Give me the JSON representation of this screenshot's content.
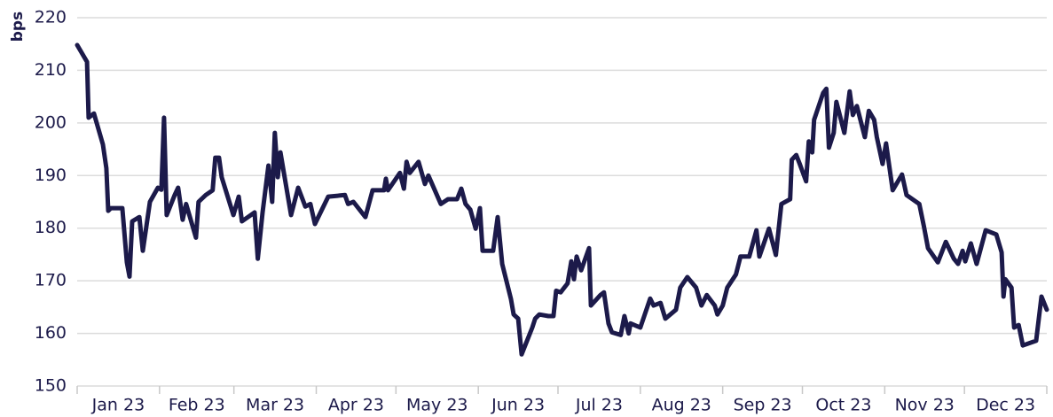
{
  "chart_data": {
    "type": "line",
    "y_label": "bps",
    "categories": [
      "Jan 23",
      "Feb 23",
      "Mar 23",
      "Apr 23",
      "May 23",
      "Jun 23",
      "Jul 23",
      "Aug 23",
      "Sep 23",
      "Oct 23",
      "Nov 23",
      "Dec 23"
    ],
    "xlim": [
      0,
      365
    ],
    "xticks": [
      0,
      31,
      59,
      90,
      120,
      151,
      181,
      212,
      243,
      273,
      304,
      334,
      365
    ],
    "ylim": [
      150,
      220
    ],
    "yticks": [
      150,
      160,
      170,
      180,
      190,
      200,
      210,
      220
    ],
    "grid": true,
    "series": [
      {
        "name": "bps",
        "color": "#1c1a4a",
        "x": [
          0,
          3.7,
          4.3,
          6.3,
          9.7,
          11,
          11.7,
          12.7,
          17,
          18.7,
          19.7,
          20.7,
          23.4,
          24.7,
          27.4,
          30.4,
          31.7,
          32.7,
          33.7,
          36.7,
          38,
          39.7,
          41,
          44.7,
          45.7,
          48.4,
          51,
          52,
          53.4,
          54.4,
          58.8,
          60.8,
          62,
          66.8,
          68,
          69.8,
          72,
          73.4,
          74.4,
          75.5,
          76.5,
          80.5,
          83.2,
          85.9,
          87.8,
          89.5,
          94.5,
          100.8,
          102,
          104,
          108.5,
          111.2,
          115.5,
          116.2,
          117,
          121.5,
          123,
          124,
          125.2,
          128.5,
          130.9,
          132.2,
          136.9,
          139.6,
          143,
          144.6,
          146.2,
          148,
          150,
          151.6,
          152.6,
          156.6,
          158.3,
          160,
          163.3,
          164.3,
          166,
          167.3,
          171.3,
          172.4,
          174,
          177.4,
          179.3,
          180.3,
          182,
          184.6,
          186,
          187,
          188,
          189.7,
          192.7,
          193.4,
          197,
          198.3,
          200,
          201.3,
          204.6,
          206,
          207.6,
          208.3,
          212,
          215.7,
          217,
          219.6,
          221.4,
          225.4,
          227,
          229.7,
          233,
          235,
          237,
          240,
          241,
          243,
          244.7,
          248,
          249.7,
          253,
          255.7,
          256.8,
          260.4,
          263,
          265.1,
          268.4,
          269,
          270.7,
          272,
          274.4,
          275.4,
          276.7,
          277.4,
          280.8,
          282,
          283,
          284.8,
          285.8,
          288.8,
          290.8,
          292,
          293.5,
          296.5,
          298,
          300,
          301,
          303.2,
          304.5,
          307,
          310.5,
          312.2,
          317,
          318.7,
          320.3,
          324,
          327,
          330,
          331.6,
          333.3,
          334.3,
          336.4,
          338.6,
          342,
          346,
          348,
          348.7,
          349.4,
          351.7,
          352.7,
          354.4,
          356,
          361,
          363,
          365
        ],
        "values": [
          214.8,
          211.6,
          201,
          201.8,
          195.9,
          191.4,
          183.3,
          183.8,
          183.8,
          173.5,
          170.8,
          181.3,
          182.1,
          175.7,
          185,
          187.7,
          187.3,
          201,
          182.5,
          186.3,
          187.7,
          181.6,
          184.6,
          178.2,
          185,
          186.3,
          187.2,
          193.4,
          193.4,
          189.7,
          182.5,
          186,
          181.3,
          183,
          174.2,
          183,
          191.9,
          185,
          198.1,
          189.7,
          194.4,
          182.5,
          187.7,
          184.1,
          184.6,
          180.8,
          186,
          186.3,
          184.6,
          185,
          182.1,
          187.2,
          187.2,
          189.4,
          187.2,
          190.5,
          187.5,
          192.6,
          190.5,
          192.6,
          188.4,
          190,
          184.6,
          185.5,
          185.5,
          187.5,
          184.6,
          183.5,
          179.9,
          183.8,
          175.7,
          175.7,
          182.1,
          173.2,
          166.5,
          163.6,
          162.8,
          156,
          161.1,
          162.8,
          163.6,
          163.3,
          163.3,
          168.1,
          167.8,
          169.5,
          173.7,
          170.3,
          174.6,
          172,
          176.2,
          165.3,
          167.3,
          167.8,
          161.9,
          160.2,
          159.7,
          163.3,
          160,
          161.9,
          161.1,
          166.6,
          165.3,
          165.8,
          162.8,
          164.5,
          168.7,
          170.7,
          168.7,
          165.3,
          167.3,
          165.3,
          163.6,
          165.3,
          168.7,
          171.2,
          174.6,
          174.6,
          179.6,
          174.6,
          179.9,
          174.9,
          184.6,
          185.5,
          193,
          193.9,
          192.2,
          188.9,
          196.5,
          194.4,
          200.6,
          205.7,
          206.5,
          195.3,
          198.1,
          204,
          198.1,
          206,
          201.5,
          203.2,
          197.3,
          202.3,
          200.6,
          197.3,
          192.2,
          196.1,
          187.2,
          190.2,
          186.3,
          184.6,
          180.4,
          176.2,
          173.5,
          177.4,
          174.2,
          173.2,
          175.7,
          173.7,
          177.1,
          173.2,
          179.6,
          178.8,
          175.4,
          167,
          170.3,
          168.7,
          161.1,
          161.6,
          157.7,
          158.6,
          167,
          164.5
        ]
      }
    ]
  }
}
